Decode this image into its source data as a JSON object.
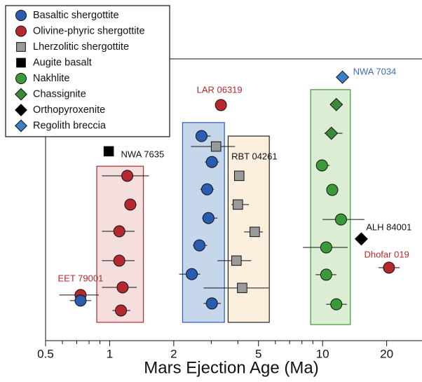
{
  "chart_data": {
    "type": "scatter",
    "x_label": "Mars Ejection Age (Ma)",
    "xscale": "log",
    "xlim": [
      0.5,
      29.3
    ],
    "ylim": [
      0,
      100
    ],
    "xticks": [
      0.5,
      1,
      2,
      5,
      10,
      20
    ],
    "xminorticks": [
      0.6,
      0.7,
      0.8,
      0.9,
      3,
      4,
      6,
      7,
      8,
      9
    ],
    "legend_position": "upper left",
    "ranges": [
      {
        "color": "#b5282e",
        "fill": "#f4dede",
        "xmin": 0.87,
        "xmax": 1.44,
        "ymin": 6.5,
        "ymax": 61.9
      },
      {
        "color": "#2a5db0",
        "fill": "#c6d6eb",
        "xmin": 2.2,
        "xmax": 3.46,
        "ymin": 6.5,
        "ymax": 77.4
      },
      {
        "color": "#222222",
        "fill": "#fcefde",
        "xmin": 3.6,
        "xmax": 5.62,
        "ymin": 6.5,
        "ymax": 72.6
      },
      {
        "color": "#3a9a3a",
        "fill": "#dbeed3",
        "xmin": 8.79,
        "xmax": 13.5,
        "ymin": 5.7,
        "ymax": 89.1
      }
    ],
    "series": [
      {
        "name": "Basaltic shergottite",
        "color": "#2a5db0",
        "marker": "circle",
        "x": [
          2.7,
          3.02,
          2.87,
          2.91,
          2.64,
          2.43,
          3.02,
          0.73
        ],
        "y": [
          72.6,
          63.4,
          53.7,
          43.5,
          33.8,
          23.6,
          13.2,
          14.2
        ],
        "xlow": [
          2.56,
          2.8,
          2.66,
          2.72,
          2.46,
          2.12,
          2.76,
          0.65
        ],
        "xhigh": [
          2.98,
          3.26,
          3.09,
          3.21,
          2.87,
          2.66,
          3.33,
          0.82
        ]
      },
      {
        "name": "Olivine-phyric shergottite",
        "color": "#b5282e",
        "marker": "circle",
        "x": [
          1.21,
          1.25,
          1.11,
          1.11,
          1.15,
          1.13,
          0.73,
          3.33,
          20.5
        ],
        "y": [
          58.5,
          48.3,
          38.8,
          28.4,
          18.9,
          10.7,
          16.2,
          83.6,
          25.9
        ],
        "xlow": [
          0.92,
          1.18,
          0.92,
          0.92,
          0.92,
          1.03,
          0.58,
          null,
          18.3
        ],
        "xhigh": [
          1.53,
          1.34,
          1.31,
          1.31,
          1.34,
          1.25,
          0.89,
          null,
          23.0
        ]
      },
      {
        "name": "Lherzolitic shergottite",
        "color": "#9a9a9a",
        "marker": "square",
        "x": [
          3.16,
          4.06,
          4.0,
          4.8,
          3.94,
          4.19
        ],
        "y": [
          68.9,
          58.5,
          48.3,
          38.6,
          28.4,
          18.7
        ],
        "xlow": [
          2.41,
          null,
          3.73,
          4.28,
          3.21,
          2.76
        ],
        "xhigh": [
          3.88,
          null,
          4.51,
          5.25,
          4.62,
          5.58
        ]
      },
      {
        "name": "Augite basalt",
        "color": "#000000",
        "marker": "square",
        "x": [
          0.99
        ],
        "y": [
          67.2
        ],
        "xlow": [
          null
        ],
        "xhigh": [
          null
        ]
      },
      {
        "name": "Nakhlite",
        "color": "#3a9a3a",
        "marker": "circle",
        "x": [
          9.93,
          11.1,
          12.2,
          10.4,
          10.4,
          11.6
        ],
        "y": [
          62.2,
          53.5,
          43.0,
          33.1,
          23.4,
          12.9
        ],
        "xlow": [
          9.41,
          10.6,
          10.0,
          8.09,
          9.27,
          10.4
        ],
        "xhigh": [
          10.8,
          11.6,
          15.7,
          13.1,
          11.6,
          13.0
        ]
      },
      {
        "name": "Chassignite",
        "color": "#3a8a3a",
        "marker": "diamond",
        "x": [
          11.6,
          11.0
        ],
        "y": [
          83.8,
          73.6
        ],
        "xlow": [
          null,
          10.2
        ],
        "xhigh": [
          null,
          12.4
        ]
      },
      {
        "name": "Orthopyroxenite",
        "color": "#000000",
        "marker": "diamond",
        "x": [
          15.2
        ],
        "y": [
          36.1
        ],
        "xlow": [
          null
        ],
        "xhigh": [
          null
        ]
      },
      {
        "name": "Regolith breccia",
        "color": "#3a7fc8",
        "marker": "diamond",
        "x": [
          12.4
        ],
        "y": [
          93.5
        ],
        "xlow": [
          null
        ],
        "xhigh": [
          null
        ]
      }
    ],
    "annotations": [
      {
        "text": "NWA 7635",
        "x": 1.13,
        "y": 65.9,
        "color": "#111111",
        "anchor": "start"
      },
      {
        "text": "LAR 06319",
        "x": 3.28,
        "y": 88.8,
        "color": "#b5282e",
        "anchor": "middle"
      },
      {
        "text": "RBT 04261",
        "x": 3.73,
        "y": 65.2,
        "color": "#111111",
        "anchor": "start"
      },
      {
        "text": "NWA 7034",
        "x": 13.9,
        "y": 95.3,
        "color": "#3a6db5",
        "anchor": "start"
      },
      {
        "text": "ALH 84001",
        "x": 16.0,
        "y": 40.0,
        "color": "#111111",
        "anchor": "start"
      },
      {
        "text": "Dhofar 019",
        "x": 20.0,
        "y": 30.3,
        "color": "#b5282e",
        "anchor": "middle"
      },
      {
        "text": "EET 79001",
        "x": 0.73,
        "y": 21.9,
        "color": "#b5282e",
        "anchor": "middle"
      }
    ]
  }
}
